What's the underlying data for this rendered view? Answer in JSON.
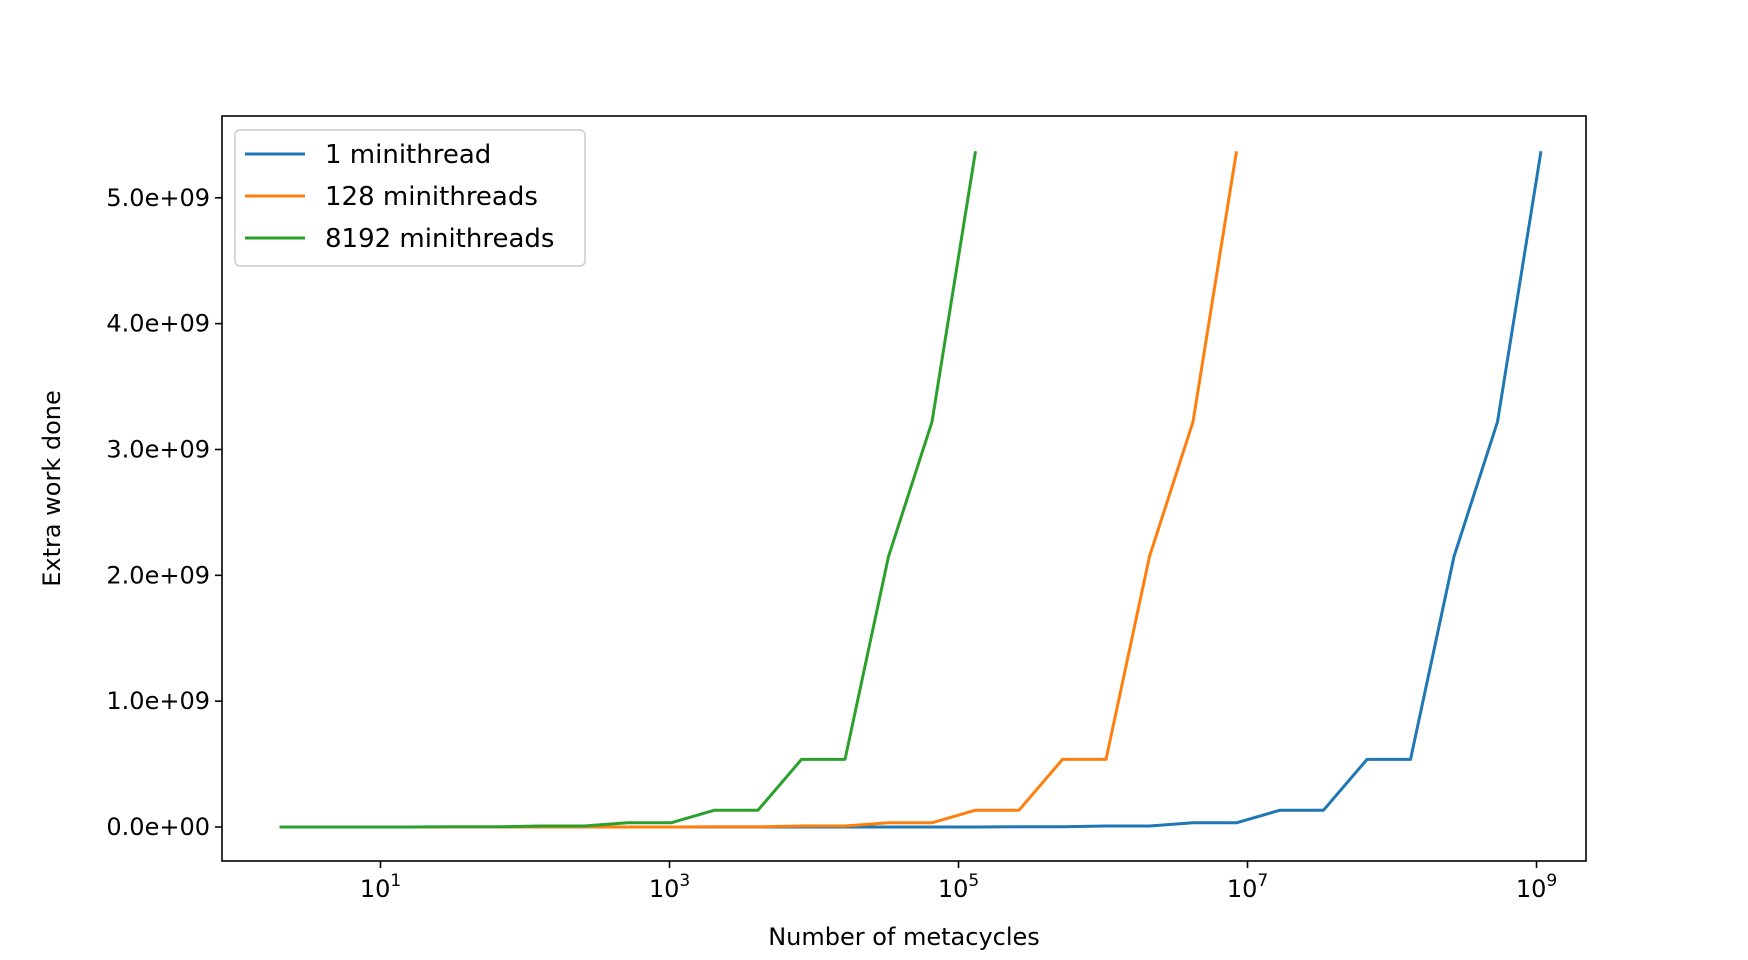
{
  "chart_data": {
    "type": "line",
    "title": "",
    "xlabel": "Number of metacycles",
    "ylabel": "Extra work done",
    "xscale": "log",
    "xlim": [
      0.8,
      2200000000.0
    ],
    "ylim": [
      -270000000.0,
      5650000000.0
    ],
    "x_ticks": [
      {
        "value": 10,
        "base": "10",
        "exp": "1"
      },
      {
        "value": 1000,
        "base": "10",
        "exp": "3"
      },
      {
        "value": 100000,
        "base": "10",
        "exp": "5"
      },
      {
        "value": 10000000,
        "base": "10",
        "exp": "7"
      },
      {
        "value": 1000000000,
        "base": "10",
        "exp": "9"
      }
    ],
    "y_ticks": [
      {
        "value": 0,
        "label": "0.0e+00"
      },
      {
        "value": 1000000000,
        "label": "1.0e+09"
      },
      {
        "value": 2000000000,
        "label": "2.0e+09"
      },
      {
        "value": 3000000000,
        "label": "3.0e+09"
      },
      {
        "value": 4000000000,
        "label": "4.0e+09"
      },
      {
        "value": 5000000000,
        "label": "5.0e+09"
      }
    ],
    "grid": false,
    "legend_position": "top-left",
    "series": [
      {
        "name": "1 minithread",
        "color": "#1f77b4",
        "x": [
          2,
          4,
          8,
          16,
          32,
          64,
          128,
          256,
          512,
          1024,
          2048,
          4096,
          8192,
          16384,
          32768,
          65536,
          131072,
          262144,
          524288,
          1048576,
          2097152,
          4194304,
          8388608,
          16777216,
          33554432,
          67108864,
          134217728,
          268435456,
          536870912,
          1073741824
        ],
        "y": [
          0,
          0,
          0,
          0,
          0,
          0,
          0,
          0,
          0,
          0,
          0,
          0,
          0,
          0,
          0,
          0,
          0,
          2000000,
          2000000,
          8400000,
          8400000,
          33500000,
          33500000,
          134000000,
          134000000,
          537000000,
          537000000,
          2150000000,
          3220000000,
          5370000000
        ]
      },
      {
        "name": "128 minithreads",
        "color": "#ff7f0e",
        "x": [
          2,
          4,
          8,
          16,
          32,
          64,
          128,
          256,
          512,
          1024,
          2048,
          4096,
          8192,
          16384,
          32768,
          65536,
          131072,
          262144,
          524288,
          1048576,
          2097152,
          4194304,
          8388608
        ],
        "y": [
          0,
          0,
          0,
          0,
          0,
          0,
          0,
          0,
          0,
          0,
          2000000,
          2000000,
          8400000,
          8400000,
          33500000,
          33500000,
          134000000,
          134000000,
          537000000,
          537000000,
          2150000000,
          3220000000,
          5370000000
        ]
      },
      {
        "name": "8192 minithreads",
        "color": "#2ca02c",
        "x": [
          2,
          4,
          8,
          16,
          32,
          64,
          128,
          256,
          512,
          1024,
          2048,
          4096,
          8192,
          16384,
          32768,
          65536,
          131072
        ],
        "y": [
          0,
          0,
          0,
          0,
          2000000,
          2000000,
          8400000,
          8400000,
          33500000,
          33500000,
          134000000,
          134000000,
          537000000,
          537000000,
          2150000000,
          3220000000,
          5370000000
        ]
      }
    ]
  }
}
